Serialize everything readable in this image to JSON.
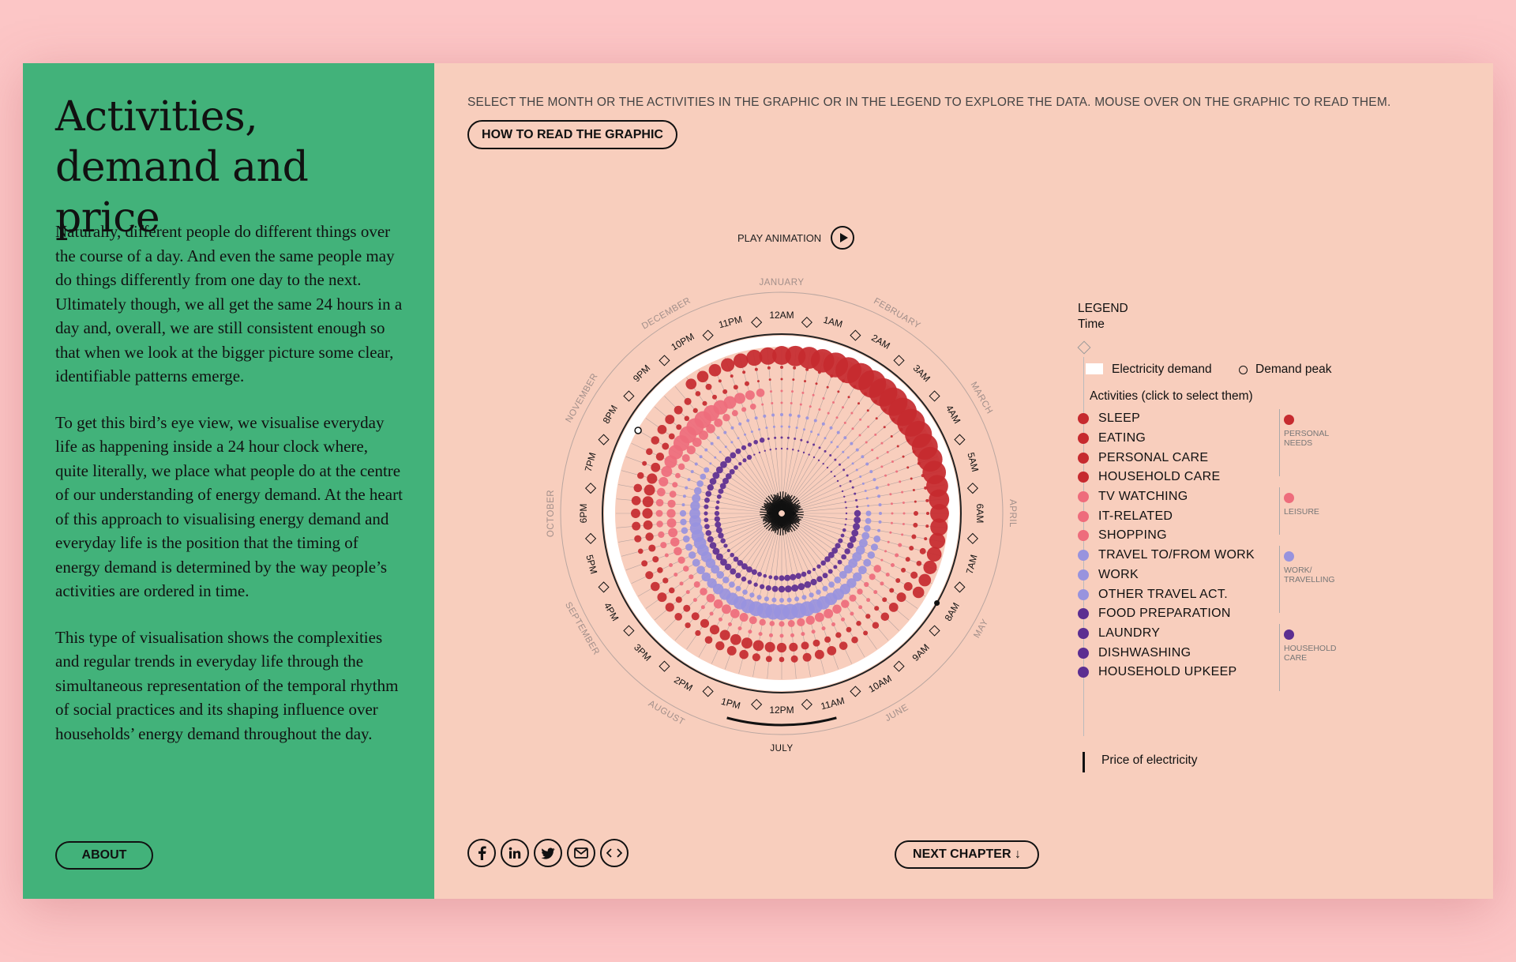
{
  "sidebar": {
    "title_line1": "Activities,",
    "title_line2": "demand and price",
    "paragraphs": [
      "Naturally, different people do different things over the course of a day. And even the same people may do things differently from one day to the next. Ultimately though, we all get the same 24 hours in a day and, overall, we are still consistent enough so that when we look at the bigger picture some clear, identifiable patterns emerge.",
      "To get this bird’s eye view, we visualise everyday life as happening inside a 24 hour clock where, quite literally, we place what people do at the centre of our understanding of energy demand. At the heart of this approach to visualising energy demand and everyday life is the position that the timing of energy demand is determined by the way people’s activities are ordered in time.",
      "This type of visualisation shows the complexities and regular trends in everyday life through the simultaneous representation of the temporal rhythm of social practices and its shaping influence over households’ energy demand throughout the day."
    ],
    "about_label": "ABOUT"
  },
  "main": {
    "instructions": "SELECT THE MONTH OR THE ACTIVITIES IN THE GRAPHIC OR IN THE LEGEND TO EXPLORE THE DATA. MOUSE OVER ON THE GRAPHIC TO READ THEM.",
    "how_to_label": "HOW TO READ THE GRAPHIC",
    "play_label": "PLAY ANIMATION",
    "next_label": "NEXT CHAPTER ↓"
  },
  "legend": {
    "title": "LEGEND",
    "time_label": "Time",
    "electricity_label": "Electricity demand",
    "peak_label": "Demand peak",
    "activities_label": "Activities (click to select them)",
    "items": [
      {
        "label": "SLEEP",
        "color": "#c62a2f"
      },
      {
        "label": "EATING",
        "color": "#c62a2f"
      },
      {
        "label": "PERSONAL CARE",
        "color": "#c62a2f"
      },
      {
        "label": "HOUSEHOLD CARE",
        "color": "#c62a2f"
      },
      {
        "label": "TV WATCHING",
        "color": "#ee6c7c"
      },
      {
        "label": "IT-RELATED",
        "color": "#ee6c7c"
      },
      {
        "label": "SHOPPING",
        "color": "#ee6c7c"
      },
      {
        "label": "TRAVEL TO/FROM WORK",
        "color": "#9893de"
      },
      {
        "label": "WORK",
        "color": "#9893de"
      },
      {
        "label": "OTHER TRAVEL ACT.",
        "color": "#9893de"
      },
      {
        "label": "FOOD PREPARATION",
        "color": "#5c2e91"
      },
      {
        "label": "LAUNDRY",
        "color": "#5c2e91"
      },
      {
        "label": "DISHWASHING",
        "color": "#5c2e91"
      },
      {
        "label": "HOUSEHOLD UPKEEP",
        "color": "#5c2e91"
      }
    ],
    "groups": [
      {
        "label": "PERSONAL NEEDS",
        "color": "#c62a2f"
      },
      {
        "label": "LEISURE",
        "color": "#ee6c7c"
      },
      {
        "label": "WORK/ TRAVELLING",
        "color": "#9893de"
      },
      {
        "label": "HOUSEHOLD CARE",
        "color": "#5c2e91"
      }
    ],
    "price_label": "Price of electricity"
  },
  "social": [
    {
      "icon": "facebook-icon"
    },
    {
      "icon": "linkedin-icon"
    },
    {
      "icon": "twitter-icon"
    },
    {
      "icon": "email-icon"
    },
    {
      "icon": "embed-icon"
    }
  ],
  "chart_data": {
    "type": "radial",
    "hour_labels": [
      "12AM",
      "1AM",
      "2AM",
      "3AM",
      "4AM",
      "5AM",
      "6AM",
      "7AM",
      "8AM",
      "9AM",
      "10AM",
      "11AM",
      "12PM",
      "1PM",
      "2PM",
      "3PM",
      "4PM",
      "5PM",
      "6PM",
      "7PM",
      "8PM",
      "9PM",
      "10PM",
      "11PM"
    ],
    "month_labels": [
      "JANUARY",
      "FEBRUARY",
      "MARCH",
      "APRIL",
      "MAY",
      "JUNE",
      "JULY",
      "AUGUST",
      "SEPTEMBER",
      "OCTOBER",
      "NOVEMBER",
      "DECEMBER"
    ],
    "selected_month": "JULY",
    "category_colors": {
      "personal": "#c62a2f",
      "leisure": "#ee6c7c",
      "work": "#9893de",
      "household": "#5c2e91"
    }
  }
}
